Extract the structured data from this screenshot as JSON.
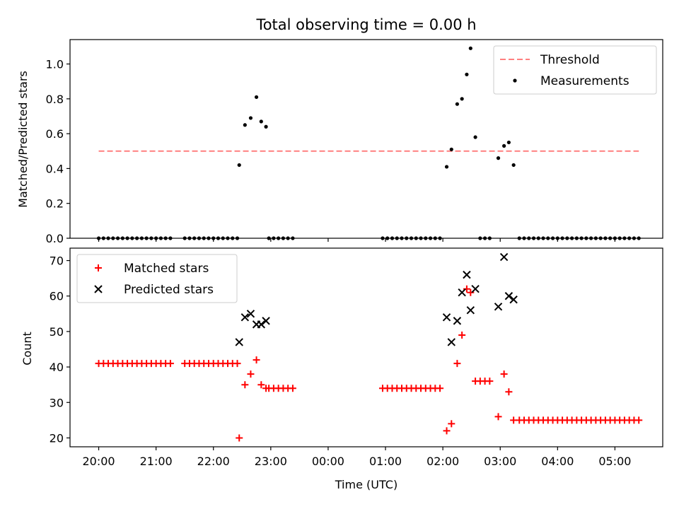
{
  "chart_data": [
    {
      "type": "scatter",
      "title": "Total observing time = 0.00 h",
      "xlabel": "",
      "ylabel": "Matched/Predicted stars",
      "ylim": [
        0,
        1.14
      ],
      "xlim": [
        "19:30",
        "05:50"
      ],
      "yticks": [
        "0.0",
        "0.2",
        "0.4",
        "0.6",
        "0.8",
        "1.0"
      ],
      "legend_position": "top-right",
      "grid": false,
      "series": [
        {
          "name": "Threshold",
          "kind": "dashed-line",
          "color": "#ff7f7f",
          "points": [
            [
              "20:00",
              0.5
            ],
            [
              "05:25",
              0.5
            ]
          ]
        },
        {
          "name": "Measurements",
          "kind": "dots",
          "color": "#000000",
          "points": [
            [
              "20:00",
              0
            ],
            [
              "20:05",
              0
            ],
            [
              "20:10",
              0
            ],
            [
              "20:15",
              0
            ],
            [
              "20:20",
              0
            ],
            [
              "20:25",
              0
            ],
            [
              "20:30",
              0
            ],
            [
              "20:35",
              0
            ],
            [
              "20:40",
              0
            ],
            [
              "20:45",
              0
            ],
            [
              "20:50",
              0
            ],
            [
              "20:55",
              0
            ],
            [
              "21:00",
              0
            ],
            [
              "21:05",
              0
            ],
            [
              "21:10",
              0
            ],
            [
              "21:15",
              0
            ],
            [
              "21:30",
              0
            ],
            [
              "21:35",
              0
            ],
            [
              "21:40",
              0
            ],
            [
              "21:45",
              0
            ],
            [
              "21:50",
              0
            ],
            [
              "21:55",
              0
            ],
            [
              "22:00",
              0
            ],
            [
              "22:05",
              0
            ],
            [
              "22:10",
              0
            ],
            [
              "22:15",
              0
            ],
            [
              "22:20",
              0
            ],
            [
              "22:25",
              0
            ],
            [
              "22:27",
              0.42
            ],
            [
              "22:33",
              0.65
            ],
            [
              "22:39",
              0.69
            ],
            [
              "22:45",
              0.81
            ],
            [
              "22:50",
              0.67
            ],
            [
              "22:55",
              0.64
            ],
            [
              "22:58",
              0
            ],
            [
              "23:03",
              0
            ],
            [
              "23:08",
              0
            ],
            [
              "23:13",
              0
            ],
            [
              "23:18",
              0
            ],
            [
              "23:23",
              0
            ],
            [
              "00:57",
              0
            ],
            [
              "01:02",
              0
            ],
            [
              "01:07",
              0
            ],
            [
              "01:12",
              0
            ],
            [
              "01:17",
              0
            ],
            [
              "01:22",
              0
            ],
            [
              "01:27",
              0
            ],
            [
              "01:32",
              0
            ],
            [
              "01:37",
              0
            ],
            [
              "01:42",
              0
            ],
            [
              "01:47",
              0
            ],
            [
              "01:52",
              0
            ],
            [
              "01:57",
              0
            ],
            [
              "02:04",
              0.41
            ],
            [
              "02:09",
              0.51
            ],
            [
              "02:15",
              0.77
            ],
            [
              "02:20",
              0.8
            ],
            [
              "02:25",
              0.94
            ],
            [
              "02:29",
              1.09
            ],
            [
              "02:34",
              0.58
            ],
            [
              "02:39",
              0
            ],
            [
              "02:44",
              0
            ],
            [
              "02:49",
              0
            ],
            [
              "02:58",
              0.46
            ],
            [
              "03:04",
              0.53
            ],
            [
              "03:09",
              0.55
            ],
            [
              "03:14",
              0.42
            ],
            [
              "03:20",
              0
            ],
            [
              "03:25",
              0
            ],
            [
              "03:30",
              0
            ],
            [
              "03:35",
              0
            ],
            [
              "03:40",
              0
            ],
            [
              "03:45",
              0
            ],
            [
              "03:50",
              0
            ],
            [
              "03:55",
              0
            ],
            [
              "04:00",
              0
            ],
            [
              "04:05",
              0
            ],
            [
              "04:10",
              0
            ],
            [
              "04:15",
              0
            ],
            [
              "04:20",
              0
            ],
            [
              "04:25",
              0
            ],
            [
              "04:30",
              0
            ],
            [
              "04:35",
              0
            ],
            [
              "04:40",
              0
            ],
            [
              "04:45",
              0
            ],
            [
              "04:50",
              0
            ],
            [
              "04:55",
              0
            ],
            [
              "05:00",
              0
            ],
            [
              "05:05",
              0
            ],
            [
              "05:10",
              0
            ],
            [
              "05:15",
              0
            ],
            [
              "05:20",
              0
            ],
            [
              "05:25",
              0
            ]
          ]
        }
      ]
    },
    {
      "type": "scatter",
      "title": "",
      "xlabel": "Time (UTC)",
      "ylabel": "Count",
      "ylim": [
        17.5,
        73.5
      ],
      "xlim": [
        "19:30",
        "05:50"
      ],
      "yticks": [
        "20",
        "30",
        "40",
        "50",
        "60",
        "70"
      ],
      "xticks": [
        "20:00",
        "21:00",
        "22:00",
        "23:00",
        "00:00",
        "01:00",
        "02:00",
        "03:00",
        "04:00",
        "05:00"
      ],
      "legend_position": "top-left",
      "grid": false,
      "series": [
        {
          "name": "Matched stars",
          "kind": "plus",
          "color": "#ff0000",
          "points": [
            [
              "20:00",
              41
            ],
            [
              "20:05",
              41
            ],
            [
              "20:10",
              41
            ],
            [
              "20:15",
              41
            ],
            [
              "20:20",
              41
            ],
            [
              "20:25",
              41
            ],
            [
              "20:30",
              41
            ],
            [
              "20:35",
              41
            ],
            [
              "20:40",
              41
            ],
            [
              "20:45",
              41
            ],
            [
              "20:50",
              41
            ],
            [
              "20:55",
              41
            ],
            [
              "21:00",
              41
            ],
            [
              "21:05",
              41
            ],
            [
              "21:10",
              41
            ],
            [
              "21:15",
              41
            ],
            [
              "21:30",
              41
            ],
            [
              "21:35",
              41
            ],
            [
              "21:40",
              41
            ],
            [
              "21:45",
              41
            ],
            [
              "21:50",
              41
            ],
            [
              "21:55",
              41
            ],
            [
              "22:00",
              41
            ],
            [
              "22:05",
              41
            ],
            [
              "22:10",
              41
            ],
            [
              "22:15",
              41
            ],
            [
              "22:20",
              41
            ],
            [
              "22:25",
              41
            ],
            [
              "22:27",
              20
            ],
            [
              "22:33",
              35
            ],
            [
              "22:39",
              38
            ],
            [
              "22:45",
              42
            ],
            [
              "22:50",
              35
            ],
            [
              "22:55",
              34
            ],
            [
              "22:58",
              34
            ],
            [
              "23:03",
              34
            ],
            [
              "23:08",
              34
            ],
            [
              "23:13",
              34
            ],
            [
              "23:18",
              34
            ],
            [
              "23:23",
              34
            ],
            [
              "00:57",
              34
            ],
            [
              "01:02",
              34
            ],
            [
              "01:07",
              34
            ],
            [
              "01:12",
              34
            ],
            [
              "01:17",
              34
            ],
            [
              "01:22",
              34
            ],
            [
              "01:27",
              34
            ],
            [
              "01:32",
              34
            ],
            [
              "01:37",
              34
            ],
            [
              "01:42",
              34
            ],
            [
              "01:47",
              34
            ],
            [
              "01:52",
              34
            ],
            [
              "01:57",
              34
            ],
            [
              "02:04",
              22
            ],
            [
              "02:09",
              24
            ],
            [
              "02:15",
              41
            ],
            [
              "02:20",
              49
            ],
            [
              "02:25",
              62
            ],
            [
              "02:29",
              61
            ],
            [
              "02:34",
              36
            ],
            [
              "02:39",
              36
            ],
            [
              "02:44",
              36
            ],
            [
              "02:49",
              36
            ],
            [
              "02:58",
              26
            ],
            [
              "03:04",
              38
            ],
            [
              "03:09",
              33
            ],
            [
              "03:14",
              25
            ],
            [
              "03:20",
              25
            ],
            [
              "03:25",
              25
            ],
            [
              "03:30",
              25
            ],
            [
              "03:35",
              25
            ],
            [
              "03:40",
              25
            ],
            [
              "03:45",
              25
            ],
            [
              "03:50",
              25
            ],
            [
              "03:55",
              25
            ],
            [
              "04:00",
              25
            ],
            [
              "04:05",
              25
            ],
            [
              "04:10",
              25
            ],
            [
              "04:15",
              25
            ],
            [
              "04:20",
              25
            ],
            [
              "04:25",
              25
            ],
            [
              "04:30",
              25
            ],
            [
              "04:35",
              25
            ],
            [
              "04:40",
              25
            ],
            [
              "04:45",
              25
            ],
            [
              "04:50",
              25
            ],
            [
              "04:55",
              25
            ],
            [
              "05:00",
              25
            ],
            [
              "05:05",
              25
            ],
            [
              "05:10",
              25
            ],
            [
              "05:15",
              25
            ],
            [
              "05:20",
              25
            ],
            [
              "05:25",
              25
            ]
          ]
        },
        {
          "name": "Predicted stars",
          "kind": "cross",
          "color": "#000000",
          "points": [
            [
              "22:27",
              47
            ],
            [
              "22:33",
              54
            ],
            [
              "22:39",
              55
            ],
            [
              "22:45",
              52
            ],
            [
              "22:50",
              52
            ],
            [
              "22:55",
              53
            ],
            [
              "02:04",
              54
            ],
            [
              "02:09",
              47
            ],
            [
              "02:15",
              53
            ],
            [
              "02:20",
              61
            ],
            [
              "02:25",
              66
            ],
            [
              "02:29",
              56
            ],
            [
              "02:34",
              62
            ],
            [
              "02:58",
              57
            ],
            [
              "03:04",
              71
            ],
            [
              "03:09",
              60
            ],
            [
              "03:14",
              59
            ]
          ]
        }
      ]
    }
  ]
}
